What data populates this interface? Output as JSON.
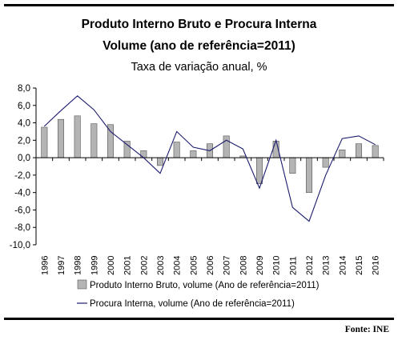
{
  "header": {
    "title_line1": "Produto Interno Bruto e Procura Interna",
    "title_line2": "Volume (ano de referência=2011)",
    "subtitle": "Taxa de variação anual, %"
  },
  "footer": {
    "source": "Fonte: INE"
  },
  "colors": {
    "bar_fill": "#b4b4b4",
    "bar_stroke": "#555555",
    "line": "#1a1a6e",
    "axis": "#000000"
  },
  "chart_data": {
    "type": "bar",
    "categories": [
      "1996",
      "1997",
      "1998",
      "1999",
      "2000",
      "2001",
      "2002",
      "2003",
      "2004",
      "2005",
      "2006",
      "2007",
      "2008",
      "2009",
      "2010",
      "2011",
      "2012",
      "2013",
      "2014",
      "2015",
      "2016"
    ],
    "series": [
      {
        "name": "Produto Interno Bruto, volume (Ano de referência=2011)",
        "type": "bar",
        "values": [
          3.5,
          4.4,
          4.8,
          3.9,
          3.8,
          1.9,
          0.8,
          -0.9,
          1.8,
          0.8,
          1.6,
          2.5,
          0.2,
          -3.0,
          1.9,
          -1.8,
          -4.0,
          -1.1,
          0.9,
          1.6,
          1.4
        ]
      },
      {
        "name": "Procura Interna, volume (Ano de referência=2011)",
        "type": "line",
        "values": [
          3.6,
          5.4,
          7.1,
          5.5,
          3.0,
          1.5,
          0.0,
          -1.8,
          3.0,
          1.2,
          0.8,
          2.0,
          1.0,
          -3.5,
          2.0,
          -5.7,
          -7.3,
          -2.0,
          2.2,
          2.5,
          1.5
        ]
      }
    ],
    "yticks": [
      "8,0",
      "6,0",
      "4,0",
      "2,0",
      "0,0",
      "-2,0",
      "-4,0",
      "-6,0",
      "-8,0",
      "-10,0"
    ],
    "ylim": [
      -10,
      8
    ],
    "grid": false,
    "legend": "bottom"
  }
}
